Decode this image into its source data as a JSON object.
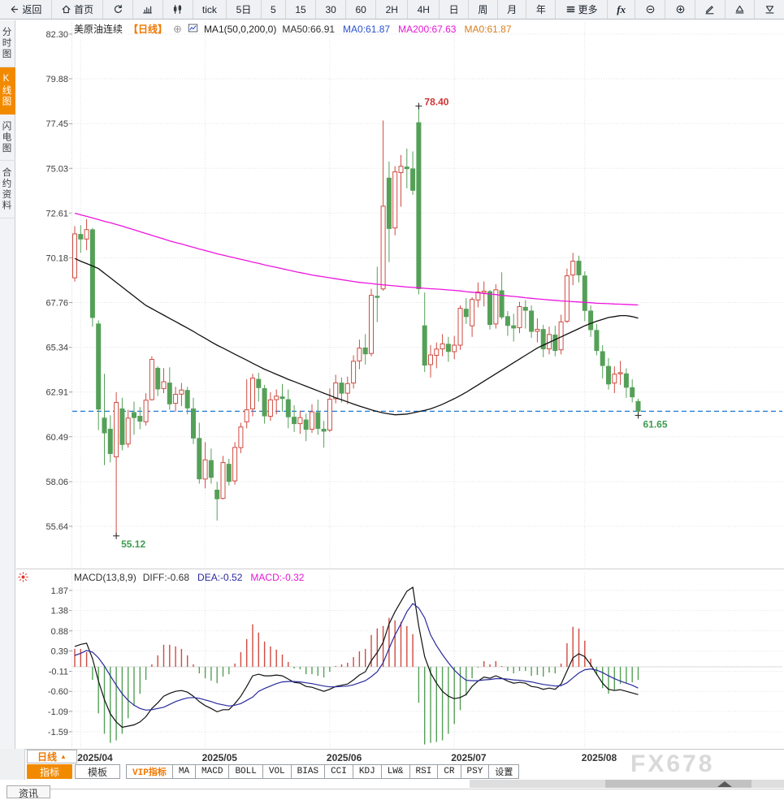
{
  "toolbar": {
    "items": [
      {
        "name": "back",
        "icon": "back-arrow",
        "label": "返回"
      },
      {
        "name": "home",
        "icon": "home",
        "label": "首页"
      },
      {
        "name": "refresh",
        "icon": "refresh",
        "label": ""
      },
      {
        "name": "bar-chart",
        "icon": "bar-chart",
        "label": ""
      },
      {
        "name": "candlestick",
        "icon": "candlestick",
        "label": ""
      },
      {
        "name": "tick",
        "label": "tick"
      },
      {
        "name": "period-5d",
        "label": "5日"
      },
      {
        "name": "period-5",
        "label": "5"
      },
      {
        "name": "period-15",
        "label": "15"
      },
      {
        "name": "period-30",
        "label": "30"
      },
      {
        "name": "period-60",
        "label": "60"
      },
      {
        "name": "period-2h",
        "label": "2H"
      },
      {
        "name": "period-4h",
        "label": "4H"
      },
      {
        "name": "period-day",
        "label": "日"
      },
      {
        "name": "period-week",
        "label": "周"
      },
      {
        "name": "period-month",
        "label": "月"
      },
      {
        "name": "period-year",
        "label": "年"
      },
      {
        "name": "more",
        "icon": "menu",
        "label": "更多"
      },
      {
        "name": "fx",
        "label": "fx"
      },
      {
        "name": "zoom-out",
        "icon": "zoom-out",
        "label": ""
      },
      {
        "name": "zoom-in",
        "icon": "zoom-in",
        "label": ""
      },
      {
        "name": "draw",
        "icon": "pencil",
        "label": ""
      },
      {
        "name": "expand-up",
        "icon": "triangle-up",
        "label": ""
      },
      {
        "name": "expand-down",
        "icon": "triangle-down",
        "label": ""
      }
    ]
  },
  "sidebar": {
    "items": [
      {
        "name": "time-chart",
        "label": "分时图",
        "active": false
      },
      {
        "name": "kline-chart",
        "label": "K线图",
        "active": true
      },
      {
        "name": "lightning-chart",
        "label": "闪电图",
        "active": false
      },
      {
        "name": "contract-info",
        "label": "合约资料",
        "active": false
      }
    ]
  },
  "legend": {
    "symbol": "美原油连续",
    "period": "【日线】",
    "plus_icon": "⊕",
    "ma_def": "MA1(50,0,200,0)",
    "values": [
      {
        "text": "MA50:66.91",
        "color": "#333333"
      },
      {
        "text": "MA0:61.87",
        "color": "#2b50cc"
      },
      {
        "text": "MA200:67.63",
        "color": "#e616d6"
      },
      {
        "text": "MA0:61.87",
        "color": "#d77e1d"
      }
    ]
  },
  "macd_legend": {
    "title": "MACD(13,8,9)",
    "values": [
      {
        "text": "DIFF:-0.68",
        "color": "#333333"
      },
      {
        "text": "DEA:-0.52",
        "color": "#2a2a9e"
      },
      {
        "text": "MACD:-0.32",
        "color": "#e616d6"
      }
    ]
  },
  "bottom": {
    "period_selector": "日线",
    "selector_arrow": "▲",
    "tabs": [
      {
        "name": "indicators",
        "label": "指标",
        "active": true
      },
      {
        "name": "templates",
        "label": "模板",
        "active": false
      }
    ],
    "indicator_tabs": [
      {
        "name": "vip",
        "label": "VIP指标",
        "highlight": true
      },
      {
        "name": "ma",
        "label": "MA"
      },
      {
        "name": "macd",
        "label": "MACD"
      },
      {
        "name": "boll",
        "label": "BOLL"
      },
      {
        "name": "vol",
        "label": "VOL"
      },
      {
        "name": "bias",
        "label": "BIAS"
      },
      {
        "name": "cci",
        "label": "CCI"
      },
      {
        "name": "kdj",
        "label": "KDJ"
      },
      {
        "name": "lw",
        "label": "LW&"
      },
      {
        "name": "rsi",
        "label": "RSI"
      },
      {
        "name": "cr",
        "label": "CR"
      },
      {
        "name": "psy",
        "label": "PSY"
      },
      {
        "name": "settings",
        "label": "设置"
      }
    ],
    "news_tab": "资讯",
    "watermark": "FX678"
  },
  "colors": {
    "up": "#cf4b42",
    "down": "#55a058",
    "ma50": "#111111",
    "ma200": "#ee15dd",
    "diff": "#111111",
    "dea": "#2a2a9e",
    "price_line": "#1f7ad4",
    "accent": "#f28a00",
    "annotation_up": "#cf3333",
    "annotation_down": "#3f9b4f"
  },
  "chart_data": {
    "type": "candlestick",
    "title": "美原油连续 日线 (WTI crude oil continuous, daily)",
    "price_axis": {
      "ticks": [
        "82.30",
        "79.88",
        "77.45",
        "75.03",
        "72.61",
        "70.18",
        "67.76",
        "65.34",
        "62.91",
        "60.49",
        "58.06",
        "55.64"
      ]
    },
    "months": [
      {
        "label": "2025/04",
        "index": 1
      },
      {
        "label": "2025/05",
        "index": 22
      },
      {
        "label": "2025/06",
        "index": 43
      },
      {
        "label": "2025/07",
        "index": 64
      },
      {
        "label": "2025/08",
        "index": 86
      }
    ],
    "annotations": {
      "high": {
        "index": 58,
        "price": 78.4,
        "label": "78.40"
      },
      "low": {
        "index": 7,
        "price": 55.12,
        "label": "55.12"
      },
      "last": {
        "index": 95,
        "price": 61.65,
        "label": "61.65"
      },
      "price_line": 61.87
    },
    "candles": [
      [
        69.1,
        71.9,
        68.9,
        71.48
      ],
      [
        71.45,
        71.95,
        70.45,
        71.2
      ],
      [
        71.2,
        72.28,
        70.6,
        71.71
      ],
      [
        71.7,
        71.8,
        66.45,
        66.95
      ],
      [
        66.6,
        66.8,
        60.85,
        61.99
      ],
      [
        61.5,
        63.9,
        58.95,
        60.7
      ],
      [
        60.9,
        61.65,
        59.1,
        59.58
      ],
      [
        59.4,
        62.9,
        55.12,
        62.35
      ],
      [
        62.0,
        62.6,
        59.75,
        60.07
      ],
      [
        60.1,
        61.95,
        59.9,
        61.5
      ],
      [
        61.8,
        62.4,
        60.6,
        61.53
      ],
      [
        61.6,
        62.1,
        60.9,
        61.33
      ],
      [
        61.3,
        62.85,
        61.1,
        62.47
      ],
      [
        62.5,
        64.85,
        62.45,
        64.68
      ],
      [
        64.2,
        64.3,
        62.7,
        63.08
      ],
      [
        63.1,
        64.2,
        62.85,
        63.47
      ],
      [
        63.4,
        64.25,
        61.95,
        62.27
      ],
      [
        62.3,
        63.2,
        61.85,
        62.79
      ],
      [
        62.8,
        63.4,
        62.15,
        63.02
      ],
      [
        63.0,
        63.2,
        61.7,
        62.05
      ],
      [
        62.0,
        62.6,
        60.1,
        60.42
      ],
      [
        60.4,
        61.25,
        57.95,
        58.21
      ],
      [
        58.2,
        60.2,
        57.7,
        59.24
      ],
      [
        59.2,
        59.85,
        57.95,
        58.29
      ],
      [
        57.6,
        58.05,
        55.95,
        57.13
      ],
      [
        57.15,
        59.45,
        57.1,
        59.09
      ],
      [
        59.0,
        59.3,
        57.85,
        58.07
      ],
      [
        58.1,
        60.2,
        57.9,
        59.91
      ],
      [
        59.9,
        61.25,
        59.6,
        61.02
      ],
      [
        61.3,
        63.6,
        60.95,
        61.95
      ],
      [
        62.0,
        63.9,
        61.6,
        63.67
      ],
      [
        63.6,
        63.95,
        62.4,
        63.15
      ],
      [
        63.1,
        63.3,
        61.2,
        61.62
      ],
      [
        61.6,
        62.9,
        61.35,
        62.49
      ],
      [
        62.5,
        63.05,
        61.7,
        62.69
      ],
      [
        62.65,
        63.35,
        61.85,
        62.56
      ],
      [
        62.5,
        63.05,
        60.95,
        61.57
      ],
      [
        61.55,
        62.2,
        60.75,
        61.2
      ],
      [
        61.2,
        61.9,
        60.65,
        61.53
      ],
      [
        61.4,
        61.75,
        60.25,
        60.89
      ],
      [
        60.9,
        62.25,
        60.7,
        61.84
      ],
      [
        61.8,
        62.5,
        60.6,
        60.94
      ],
      [
        60.9,
        61.35,
        59.9,
        60.79
      ],
      [
        60.85,
        63.1,
        60.75,
        62.52
      ],
      [
        62.55,
        63.85,
        62.3,
        63.41
      ],
      [
        63.4,
        63.7,
        62.35,
        62.85
      ],
      [
        62.85,
        63.75,
        62.25,
        63.37
      ],
      [
        63.4,
        64.9,
        63.1,
        64.58
      ],
      [
        64.6,
        65.75,
        64.15,
        65.29
      ],
      [
        65.3,
        66.05,
        64.4,
        64.98
      ],
      [
        65.0,
        68.5,
        64.85,
        68.15
      ],
      [
        68.1,
        69.7,
        66.7,
        68.04
      ],
      [
        68.5,
        77.62,
        68.4,
        72.98
      ],
      [
        74.5,
        75.4,
        69.95,
        71.77
      ],
      [
        71.8,
        75.15,
        71.4,
        74.84
      ],
      [
        74.8,
        75.75,
        72.95,
        75.14
      ],
      [
        75.1,
        76.1,
        73.95,
        75.01
      ],
      [
        75.0,
        75.95,
        73.6,
        73.84
      ],
      [
        77.5,
        78.4,
        68.2,
        68.51
      ],
      [
        66.5,
        68.3,
        64.0,
        64.37
      ],
      [
        64.4,
        65.45,
        63.7,
        64.92
      ],
      [
        64.9,
        65.6,
        64.2,
        65.24
      ],
      [
        65.25,
        66.05,
        64.85,
        65.52
      ],
      [
        65.5,
        65.9,
        64.55,
        65.11
      ],
      [
        65.1,
        65.95,
        64.7,
        65.45
      ],
      [
        65.45,
        67.6,
        65.2,
        67.45
      ],
      [
        67.4,
        68.0,
        66.6,
        67.0
      ],
      [
        66.5,
        68.05,
        65.9,
        67.93
      ],
      [
        67.9,
        68.85,
        67.5,
        68.33
      ],
      [
        68.3,
        68.9,
        67.55,
        68.38
      ],
      [
        68.35,
        68.45,
        66.3,
        66.57
      ],
      [
        66.6,
        68.75,
        66.35,
        68.45
      ],
      [
        68.4,
        69.4,
        66.85,
        66.98
      ],
      [
        67.0,
        67.3,
        65.95,
        66.52
      ],
      [
        66.5,
        67.15,
        65.65,
        66.38
      ],
      [
        66.4,
        67.8,
        66.1,
        67.54
      ],
      [
        67.5,
        67.9,
        66.35,
        67.34
      ],
      [
        67.3,
        67.6,
        65.85,
        66.2
      ],
      [
        66.2,
        66.9,
        65.6,
        66.31
      ],
      [
        66.3,
        66.55,
        64.8,
        65.25
      ],
      [
        65.25,
        66.45,
        64.95,
        66.03
      ],
      [
        66.0,
        66.5,
        64.85,
        65.16
      ],
      [
        65.2,
        67.1,
        64.95,
        66.71
      ],
      [
        66.75,
        69.6,
        66.65,
        69.21
      ],
      [
        69.25,
        70.45,
        68.7,
        70.0
      ],
      [
        70.0,
        70.3,
        68.85,
        69.26
      ],
      [
        69.2,
        69.45,
        66.75,
        67.33
      ],
      [
        67.3,
        67.6,
        65.9,
        66.29
      ],
      [
        66.25,
        66.6,
        64.9,
        65.16
      ],
      [
        65.1,
        65.45,
        63.65,
        64.35
      ],
      [
        64.3,
        64.75,
        63.05,
        63.35
      ],
      [
        63.4,
        64.3,
        62.85,
        63.88
      ],
      [
        63.9,
        64.6,
        63.3,
        63.96
      ],
      [
        63.9,
        64.2,
        62.6,
        63.17
      ],
      [
        63.15,
        63.6,
        62.35,
        62.65
      ],
      [
        62.4,
        62.55,
        61.65,
        61.87
      ]
    ],
    "ma50": [
      70.15,
      70.0,
      69.87,
      69.74,
      69.6,
      69.35,
      69.1,
      68.85,
      68.6,
      68.35,
      68.1,
      67.85,
      67.6,
      67.43,
      67.25,
      67.08,
      66.9,
      66.73,
      66.55,
      66.38,
      66.2,
      66.0,
      65.82,
      65.63,
      65.45,
      65.29,
      65.13,
      64.96,
      64.8,
      64.64,
      64.47,
      64.31,
      64.15,
      64.01,
      63.87,
      63.74,
      63.6,
      63.48,
      63.35,
      63.23,
      63.1,
      62.98,
      62.85,
      62.73,
      62.6,
      62.49,
      62.38,
      62.26,
      62.15,
      62.05,
      61.95,
      61.86,
      61.78,
      61.73,
      61.68,
      61.7,
      61.72,
      61.78,
      61.85,
      61.92,
      62.0,
      62.12,
      62.25,
      62.4,
      62.55,
      62.72,
      62.9,
      63.1,
      63.3,
      63.5,
      63.7,
      63.9,
      64.1,
      64.3,
      64.5,
      64.7,
      64.9,
      65.1,
      65.3,
      65.45,
      65.6,
      65.75,
      65.9,
      66.05,
      66.2,
      66.35,
      66.5,
      66.63,
      66.75,
      66.85,
      66.95,
      67.0,
      67.05,
      67.05,
      67.0,
      66.91
    ],
    "ma200": [
      72.6,
      72.51,
      72.43,
      72.34,
      72.25,
      72.16,
      72.08,
      71.99,
      71.9,
      71.8,
      71.7,
      71.6,
      71.5,
      71.4,
      71.3,
      71.2,
      71.1,
      71.01,
      70.93,
      70.84,
      70.75,
      70.66,
      70.58,
      70.49,
      70.4,
      70.33,
      70.25,
      70.18,
      70.1,
      70.03,
      69.95,
      69.88,
      69.8,
      69.73,
      69.66,
      69.59,
      69.52,
      69.45,
      69.38,
      69.32,
      69.25,
      69.2,
      69.15,
      69.1,
      69.05,
      69.0,
      68.95,
      68.9,
      68.85,
      68.82,
      68.79,
      68.75,
      68.72,
      68.69,
      68.66,
      68.63,
      68.6,
      68.58,
      68.56,
      68.53,
      68.51,
      68.49,
      68.47,
      68.44,
      68.42,
      68.39,
      68.35,
      68.32,
      68.29,
      68.25,
      68.22,
      68.19,
      68.15,
      68.12,
      68.09,
      68.06,
      68.02,
      67.99,
      67.96,
      67.93,
      67.9,
      67.88,
      67.85,
      67.83,
      67.81,
      67.79,
      67.77,
      67.75,
      67.72,
      67.71,
      67.7,
      67.68,
      67.67,
      67.66,
      67.64,
      67.63
    ],
    "macd": {
      "params": "13,8,9",
      "ticks": [
        "1.87",
        "1.38",
        "0.88",
        "0.39",
        "-0.11",
        "-0.60",
        "-1.09",
        "-1.59"
      ],
      "diff": [
        0.5,
        0.55,
        0.58,
        0.2,
        -0.35,
        -0.8,
        -1.15,
        -1.35,
        -1.48,
        -1.45,
        -1.42,
        -1.35,
        -1.22,
        -1.02,
        -0.88,
        -0.72,
        -0.65,
        -0.6,
        -0.58,
        -0.62,
        -0.72,
        -0.85,
        -0.95,
        -1.02,
        -1.1,
        -1.05,
        -1.05,
        -0.9,
        -0.72,
        -0.48,
        -0.22,
        -0.18,
        -0.22,
        -0.22,
        -0.2,
        -0.22,
        -0.3,
        -0.38,
        -0.4,
        -0.48,
        -0.5,
        -0.55,
        -0.6,
        -0.55,
        -0.48,
        -0.45,
        -0.42,
        -0.32,
        -0.2,
        -0.12,
        0.15,
        0.35,
        0.6,
        1.05,
        1.35,
        1.6,
        1.85,
        1.95,
        1.0,
        0.25,
        -0.15,
        -0.4,
        -0.6,
        -0.72,
        -0.78,
        -0.75,
        -0.68,
        -0.48,
        -0.35,
        -0.25,
        -0.28,
        -0.22,
        -0.28,
        -0.35,
        -0.4,
        -0.38,
        -0.4,
        -0.48,
        -0.5,
        -0.55,
        -0.52,
        -0.55,
        -0.42,
        -0.1,
        0.22,
        0.32,
        0.25,
        0.05,
        -0.18,
        -0.4,
        -0.55,
        -0.58,
        -0.56,
        -0.6,
        -0.64,
        -0.68
      ],
      "dea": [
        0.28,
        0.33,
        0.4,
        0.36,
        0.22,
        0.02,
        -0.22,
        -0.45,
        -0.66,
        -0.82,
        -0.94,
        -1.02,
        -1.06,
        -1.05,
        -1.02,
        -0.99,
        -0.92,
        -0.85,
        -0.8,
        -0.76,
        -0.75,
        -0.77,
        -0.81,
        -0.85,
        -0.9,
        -0.93,
        -0.96,
        -0.94,
        -0.9,
        -0.82,
        -0.74,
        -0.6,
        -0.53,
        -0.47,
        -0.41,
        -0.37,
        -0.36,
        -0.36,
        -0.37,
        -0.39,
        -0.41,
        -0.44,
        -0.47,
        -0.49,
        -0.49,
        -0.48,
        -0.47,
        -0.44,
        -0.39,
        -0.34,
        -0.24,
        -0.12,
        0.1,
        0.45,
        0.78,
        1.05,
        1.35,
        1.55,
        1.44,
        1.2,
        0.78,
        0.52,
        0.3,
        0.1,
        -0.08,
        -0.22,
        -0.33,
        -0.34,
        -0.34,
        -0.32,
        -0.31,
        -0.29,
        -0.29,
        -0.3,
        -0.32,
        -0.33,
        -0.35,
        -0.37,
        -0.4,
        -0.43,
        -0.45,
        -0.47,
        -0.46,
        -0.39,
        -0.27,
        -0.15,
        -0.07,
        -0.05,
        -0.08,
        -0.14,
        -0.22,
        -0.29,
        -0.35,
        -0.4,
        -0.45,
        -0.52
      ]
    }
  }
}
